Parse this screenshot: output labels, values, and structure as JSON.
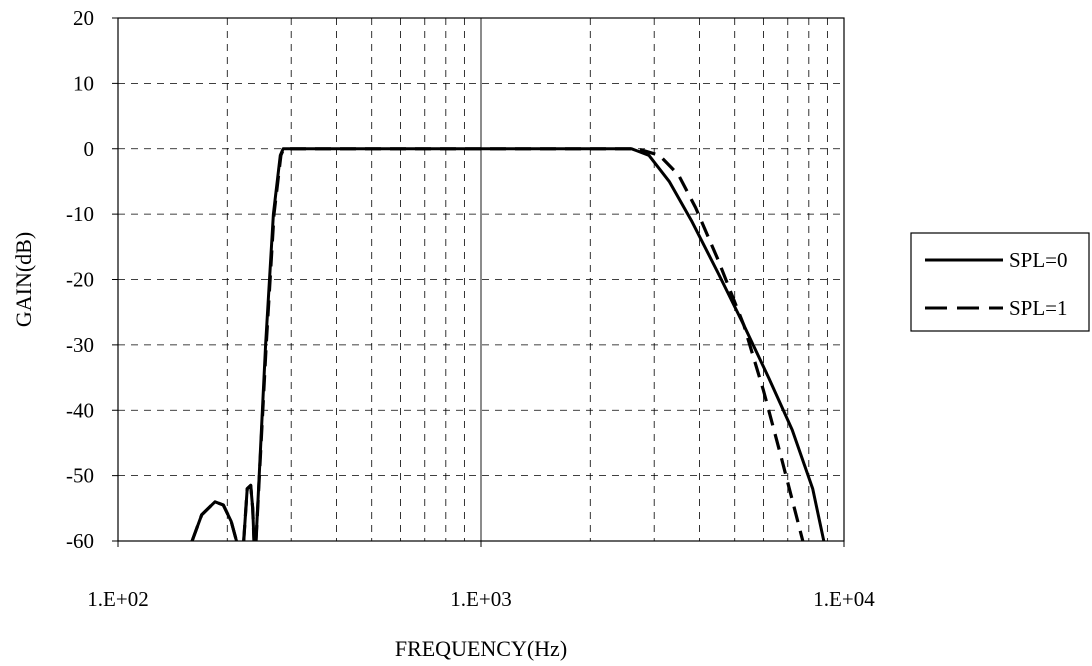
{
  "chart_data": {
    "type": "line",
    "title": "",
    "xlabel": "FREQUENCY(Hz)",
    "ylabel": "GAIN(dB)",
    "x_scale": "log",
    "xlim": [
      100,
      10000
    ],
    "ylim": [
      -60,
      20
    ],
    "x_ticks": [
      100,
      1000,
      10000
    ],
    "x_tick_labels": [
      "1.E+02",
      "1.E+03",
      "1.E+04"
    ],
    "y_ticks": [
      20,
      10,
      0,
      -10,
      -20,
      -30,
      -40,
      -50,
      -60
    ],
    "y_tick_labels": [
      "20",
      "10",
      "0",
      "-10",
      "-20",
      "-30",
      "-40",
      "-50",
      "-60"
    ],
    "grid": true,
    "legend_position": "right",
    "series": [
      {
        "name": "SPL=0",
        "style": "solid",
        "color": "#000000",
        "points": [
          [
            160,
            -60
          ],
          [
            170,
            -56
          ],
          [
            185,
            -54
          ],
          [
            195,
            -54.5
          ],
          [
            205,
            -57
          ],
          [
            212,
            -60
          ],
          [
            null,
            null
          ],
          [
            222,
            -60
          ],
          [
            227,
            -52
          ],
          [
            232,
            -51.5
          ],
          [
            235,
            -55
          ],
          [
            237,
            -60
          ],
          [
            null,
            null
          ],
          [
            240,
            -60
          ],
          [
            255,
            -30
          ],
          [
            268,
            -10
          ],
          [
            280,
            -1
          ],
          [
            285,
            0
          ],
          [
            1000,
            0
          ],
          [
            2600,
            0
          ],
          [
            2900,
            -1
          ],
          [
            3300,
            -5
          ],
          [
            3800,
            -11
          ],
          [
            4500,
            -19
          ],
          [
            5300,
            -27
          ],
          [
            6200,
            -35
          ],
          [
            7200,
            -43
          ],
          [
            8200,
            -52
          ],
          [
            8800,
            -60
          ]
        ]
      },
      {
        "name": "SPL=1",
        "style": "dashed",
        "color": "#000000",
        "points": [
          [
            160,
            -60
          ],
          [
            170,
            -56
          ],
          [
            185,
            -54
          ],
          [
            195,
            -54.5
          ],
          [
            205,
            -57
          ],
          [
            212,
            -60
          ],
          [
            null,
            null
          ],
          [
            222,
            -60
          ],
          [
            227,
            -52
          ],
          [
            232,
            -51.5
          ],
          [
            235,
            -55
          ],
          [
            237,
            -60
          ],
          [
            null,
            null
          ],
          [
            240,
            -60
          ],
          [
            256,
            -30
          ],
          [
            269,
            -10
          ],
          [
            281,
            -1
          ],
          [
            286,
            0
          ],
          [
            1000,
            0
          ],
          [
            2700,
            0
          ],
          [
            3100,
            -1
          ],
          [
            3500,
            -4
          ],
          [
            3900,
            -9
          ],
          [
            4500,
            -17
          ],
          [
            5300,
            -27
          ],
          [
            6000,
            -37
          ],
          [
            6700,
            -47
          ],
          [
            7300,
            -55
          ],
          [
            7700,
            -60
          ]
        ]
      }
    ]
  }
}
